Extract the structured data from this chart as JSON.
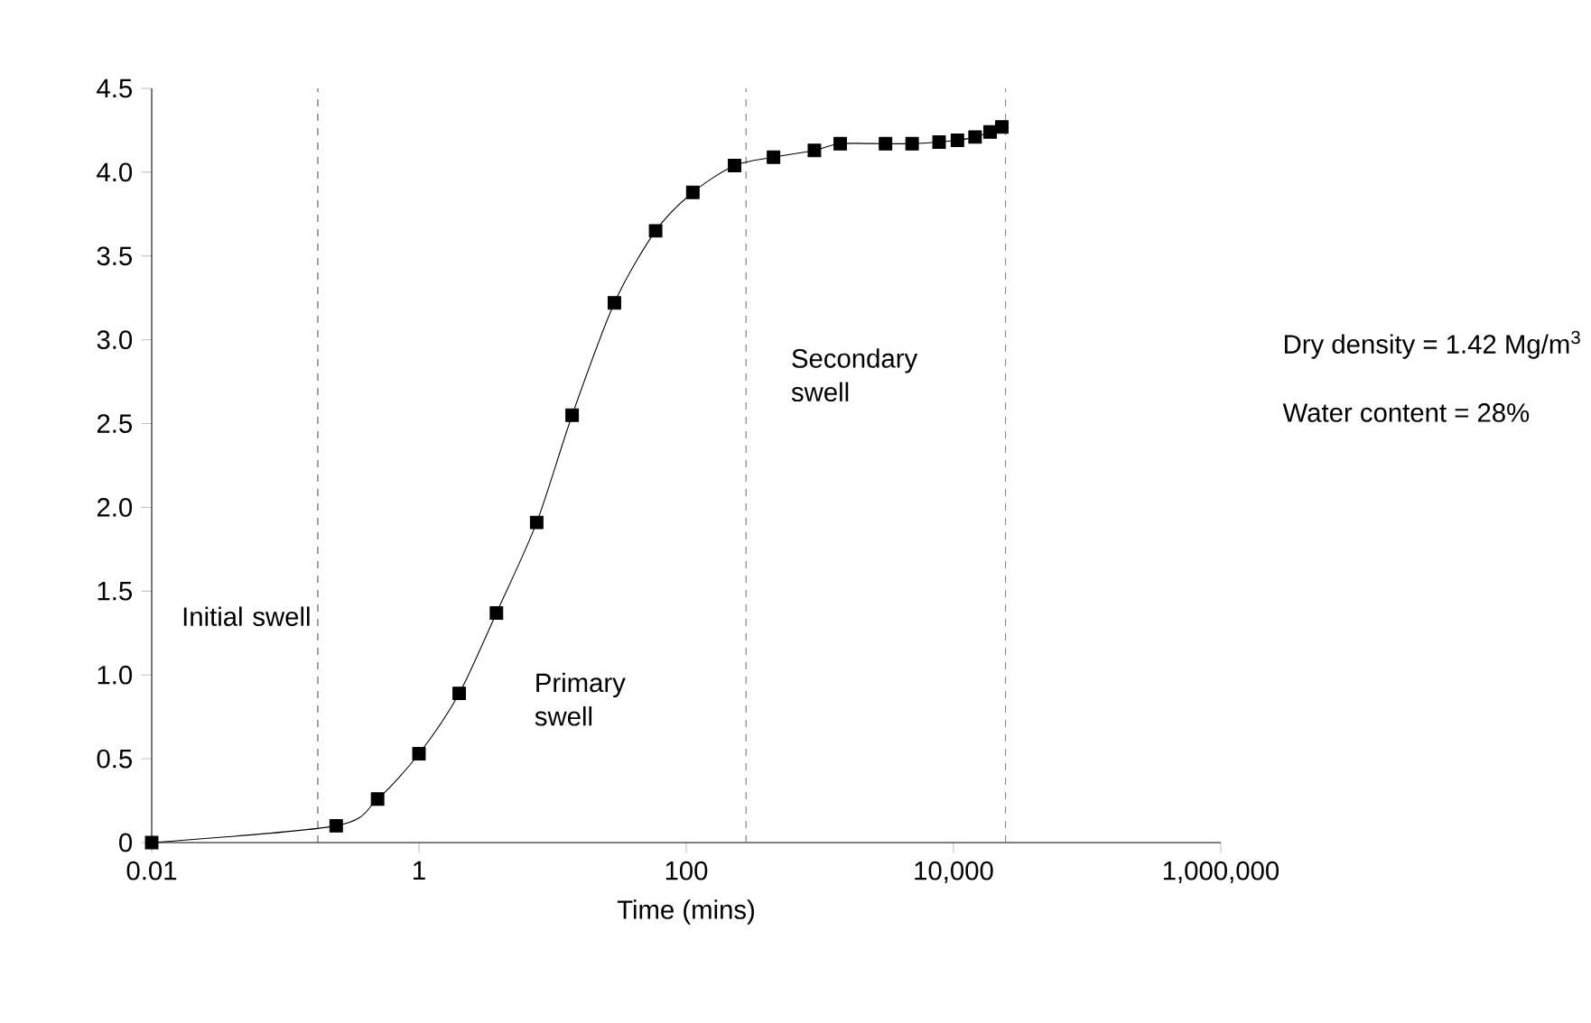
{
  "chart_data": {
    "type": "line",
    "xlabel": "Time (mins)",
    "log": "x",
    "x": [
      0.01,
      0.24,
      0.49,
      1,
      2,
      3.8,
      7.6,
      14,
      29,
      59,
      112,
      230,
      450,
      910,
      1420,
      3100,
      4900,
      7800,
      10700,
      14500,
      18800,
      23000
    ],
    "series": [
      {
        "color": "#000000",
        "values": [
          0,
          0.1,
          0.26,
          0.53,
          0.89,
          1.37,
          1.91,
          2.55,
          3.22,
          3.65,
          3.88,
          4.04,
          4.09,
          4.13,
          4.17,
          4.17,
          4.17,
          4.18,
          4.19,
          4.21,
          4.24,
          4.27
        ]
      }
    ],
    "xlim": [
      0.01,
      1000000
    ],
    "xticks": [
      0.01,
      1,
      100,
      {
        "value": 10000,
        "label": "10,000"
      },
      {
        "value": 1000000,
        "label": "1,000,000"
      }
    ],
    "ylim": [
      0,
      4.5
    ],
    "yticks": [
      0,
      0.5,
      {
        "value": 1,
        "label": "1.0"
      },
      1.5,
      {
        "value": 2,
        "label": "2.0"
      },
      2.5,
      {
        "value": 3,
        "label": "3.0"
      },
      3.5,
      {
        "value": 4,
        "label": "4.0"
      },
      4.5
    ],
    "marker": "square",
    "line_style": "solid",
    "grid": false,
    "ref_lines": [
      {
        "axis": "x",
        "value": 0.175,
        "color": "#555555",
        "line_style": "dashed"
      },
      {
        "axis": "x",
        "value": 280,
        "color": "#777777",
        "line_style": "dashed"
      },
      {
        "axis": "x",
        "value": 24500,
        "color": "#888888",
        "line_style": "dashed"
      }
    ],
    "annotations": [
      "Initial swell",
      "Primary swell",
      "Secondary swell",
      "Dry density = 1.42 Mg/m$^{3}$",
      "Water content = 28%"
    ]
  }
}
